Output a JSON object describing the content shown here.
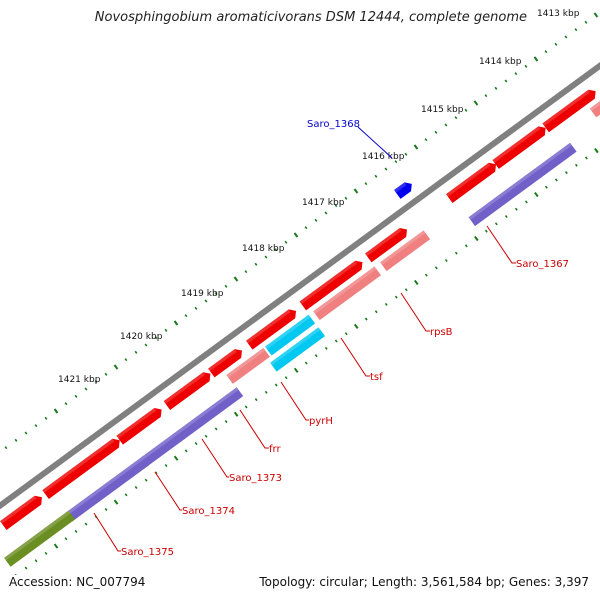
{
  "title": "Novosphingobium aromaticivorans DSM 12444, complete genome",
  "footer": {
    "accession": "Accession: NC_007794",
    "summary": "Topology: circular; Length: 3,561,584 bp; Genes: 3,397"
  },
  "kbp_ticks": [
    "1413 kbp",
    "1414 kbp",
    "1415 kbp",
    "1416 kbp",
    "1417 kbp",
    "1418 kbp",
    "1419 kbp",
    "1420 kbp",
    "1421 kbp"
  ],
  "gene_labels": [
    {
      "text": "Saro_1368",
      "color": "#0000cc"
    },
    {
      "text": "Saro_1367",
      "color": "#cc0000"
    },
    {
      "text": "rpsB",
      "color": "#cc0000"
    },
    {
      "text": "tsf",
      "color": "#cc0000"
    },
    {
      "text": "pyrH",
      "color": "#cc0000"
    },
    {
      "text": "frr",
      "color": "#cc0000"
    },
    {
      "text": "Saro_1373",
      "color": "#cc0000"
    },
    {
      "text": "Saro_1374",
      "color": "#cc0000"
    },
    {
      "text": "Saro_1375",
      "color": "#cc0000"
    }
  ],
  "colors": {
    "backbone": "#808080",
    "cds": "#ee0000",
    "gene": "#f08080",
    "cog_blue": "#7060c8",
    "cog_cyan": "#00c8f0",
    "cog_green": "#6b8e23",
    "minus_strand_blue": "#0000ee",
    "tick_green": "#1a7a1a",
    "label_line_red": "#cc0000",
    "label_line_blue": "#0000cc"
  }
}
